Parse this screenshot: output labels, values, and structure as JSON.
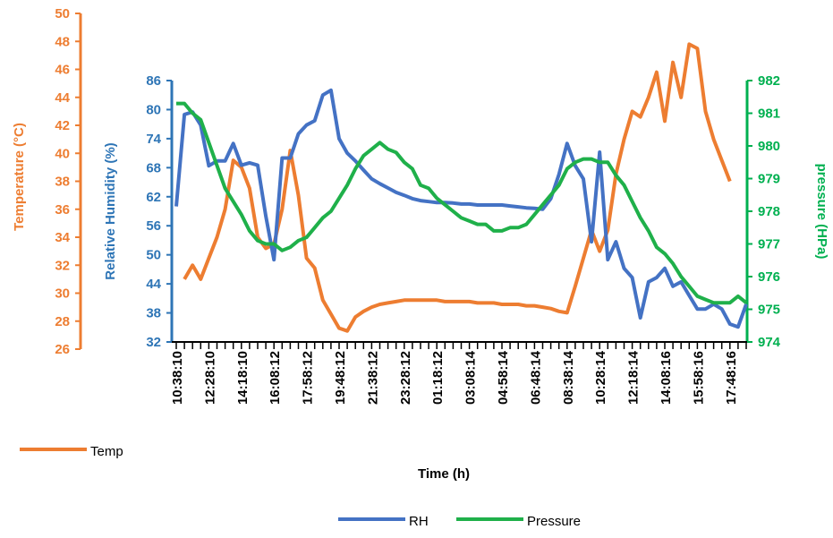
{
  "chart_data": {
    "type": "line",
    "x_title": "Time (h)",
    "categories": [
      "10:38:10",
      null,
      null,
      null,
      "12:28:10",
      null,
      null,
      null,
      "14:18:10",
      null,
      null,
      null,
      "16:08:12",
      null,
      null,
      null,
      "17:58:12",
      null,
      null,
      null,
      "19:48:12",
      null,
      null,
      null,
      "21:38:12",
      null,
      null,
      null,
      "23:28:12",
      null,
      null,
      null,
      "01:18:12",
      null,
      null,
      null,
      "03:08:14",
      null,
      null,
      null,
      "04:58:14",
      null,
      null,
      null,
      "06:48:14",
      null,
      null,
      null,
      "08:38:14",
      null,
      null,
      null,
      "10:28:14",
      null,
      null,
      null,
      "12:18:14",
      null,
      null,
      null,
      "14:08:16",
      null,
      null,
      null,
      "15:58:16",
      null,
      null,
      null,
      "17:48:16",
      null,
      null
    ],
    "y_axes": [
      {
        "title": "Temperature (°C)",
        "color": "#ed7d31",
        "ylim": [
          26,
          50
        ],
        "yticks": [
          26,
          28,
          30,
          32,
          34,
          36,
          38,
          40,
          42,
          44,
          46,
          48,
          50
        ]
      },
      {
        "title": "Relative Humidity (%)",
        "color": "#2e75b6",
        "ylim": [
          32,
          86
        ],
        "yticks": [
          32,
          38,
          44,
          50,
          56,
          62,
          68,
          74,
          80,
          86
        ]
      },
      {
        "title": "pressure (HPa)",
        "color": "#00b050",
        "ylim": [
          974,
          982
        ],
        "yticks": [
          974,
          975,
          976,
          977,
          978,
          979,
          980,
          981,
          982
        ]
      }
    ],
    "series": [
      {
        "name": "Temp",
        "color": "#ed7d31",
        "axis": 0,
        "values": [
          null,
          31,
          32,
          31,
          32.5,
          34,
          36,
          39.5,
          39,
          37.5,
          34,
          33.2,
          33.5,
          36,
          40.2,
          37,
          32.5,
          31.8,
          29.5,
          28.5,
          27.5,
          27.3,
          28.3,
          28.7,
          29,
          29.2,
          29.3,
          29.4,
          29.5,
          29.5,
          29.5,
          29.5,
          29.5,
          29.4,
          29.4,
          29.4,
          29.4,
          29.3,
          29.3,
          29.3,
          29.2,
          29.2,
          29.2,
          29.1,
          29.1,
          29,
          28.9,
          28.7,
          28.6,
          30.5,
          32.5,
          34.5,
          33,
          34.5,
          38.5,
          41,
          43,
          42.6,
          44,
          45.8,
          42.3,
          46.5,
          44,
          47.8,
          47.5,
          43,
          41,
          39.5,
          38,
          null,
          null
        ]
      },
      {
        "name": "RH",
        "color": "#4472c4",
        "axis": 1,
        "values": [
          60,
          79,
          79.5,
          76.8,
          68.4,
          69.4,
          69.4,
          73,
          68.5,
          69,
          68.5,
          58,
          49,
          70,
          70,
          75,
          76.8,
          77.7,
          83,
          84,
          74,
          71,
          69.4,
          67.5,
          65.7,
          64.7,
          63.8,
          62.9,
          62.3,
          61.6,
          61.2,
          61,
          60.8,
          60.8,
          60.7,
          60.5,
          60.5,
          60.3,
          60.3,
          60.3,
          60.3,
          60.1,
          59.9,
          59.7,
          59.6,
          59.4,
          61.6,
          66.6,
          73,
          68.4,
          65.7,
          52.7,
          71.2,
          49,
          52.7,
          47.2,
          45.3,
          37,
          44.4,
          45.3,
          47.2,
          43.5,
          44.4,
          41.6,
          38.8,
          38.8,
          39.8,
          38.8,
          35.7,
          35.1,
          39.8
        ]
      },
      {
        "name": "Pressure",
        "color": "#1fb04a",
        "axis": 2,
        "values": [
          981.3,
          981.3,
          981,
          980.8,
          980.1,
          979.4,
          978.7,
          978.3,
          977.9,
          977.4,
          977.1,
          977,
          977,
          976.8,
          976.9,
          977.1,
          977.2,
          977.5,
          977.8,
          978,
          978.4,
          978.8,
          979.3,
          979.7,
          979.9,
          980.1,
          979.9,
          979.8,
          979.5,
          979.3,
          978.8,
          978.7,
          978.4,
          978.2,
          978,
          977.8,
          977.7,
          977.6,
          977.6,
          977.4,
          977.4,
          977.5,
          977.5,
          977.6,
          977.9,
          978.2,
          978.5,
          978.8,
          979.3,
          979.5,
          979.6,
          979.6,
          979.5,
          979.5,
          979.1,
          978.8,
          978.3,
          977.8,
          977.4,
          976.9,
          976.7,
          976.4,
          976,
          975.7,
          975.4,
          975.3,
          975.2,
          975.2,
          975.2,
          975.4,
          975.2
        ]
      }
    ]
  }
}
